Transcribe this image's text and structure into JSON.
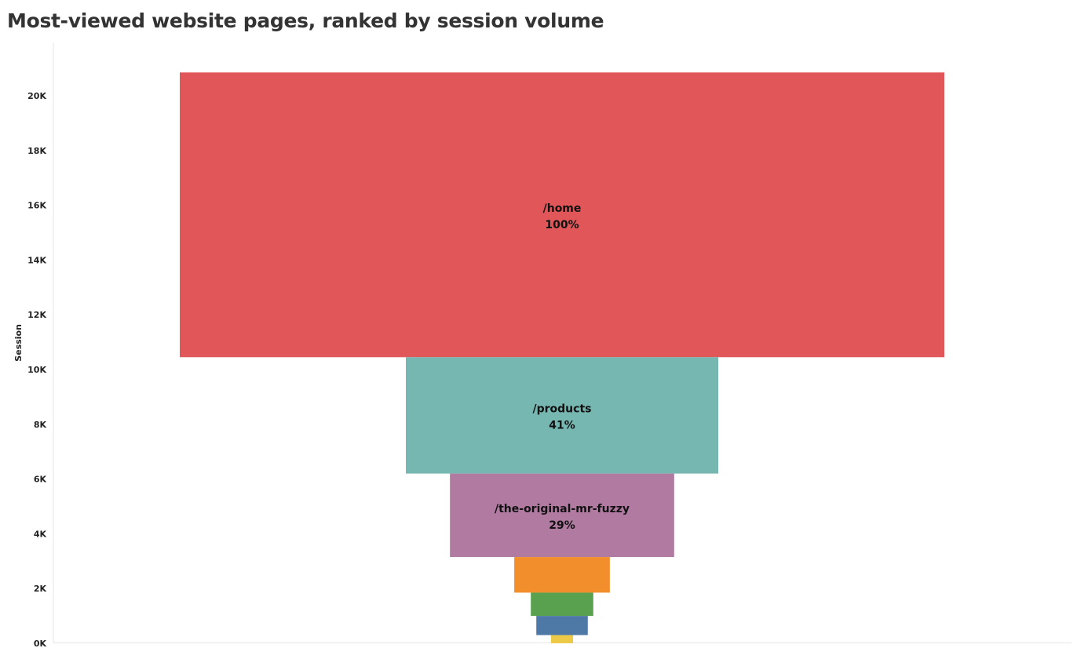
{
  "title": "Most-viewed website pages, ranked by session volume",
  "chart_data": {
    "type": "bar",
    "title": "Most-viewed website pages, ranked by session volume",
    "ylabel": "Session",
    "xlabel": "",
    "ylim": [
      0,
      21000
    ],
    "yticks": [
      0,
      2000,
      4000,
      6000,
      8000,
      10000,
      12000,
      14000,
      16000,
      18000,
      20000
    ],
    "ytick_labels": [
      "0K",
      "2K",
      "4K",
      "6K",
      "8K",
      "10K",
      "12K",
      "14K",
      "16K",
      "18K",
      "20K"
    ],
    "grid": false,
    "layout": "funnel (bars centered and stacked vertically, width proportional to value)",
    "series": [
      {
        "page": "/home",
        "value": 10400,
        "percent_label": "100%",
        "color": "#E15759"
      },
      {
        "page": "/products",
        "value": 4250,
        "percent_label": "41%",
        "color": "#76B7B2"
      },
      {
        "page": "/the-original-mr-fuzzy",
        "value": 3050,
        "percent_label": "29%",
        "color": "#B07AA1"
      },
      {
        "page": "",
        "value": 1300,
        "percent_label": "",
        "color": "#F28E2B"
      },
      {
        "page": "",
        "value": 850,
        "percent_label": "",
        "color": "#59A14F"
      },
      {
        "page": "",
        "value": 700,
        "percent_label": "",
        "color": "#4E79A7"
      },
      {
        "page": "",
        "value": 300,
        "percent_label": "",
        "color": "#EDC948"
      }
    ]
  }
}
